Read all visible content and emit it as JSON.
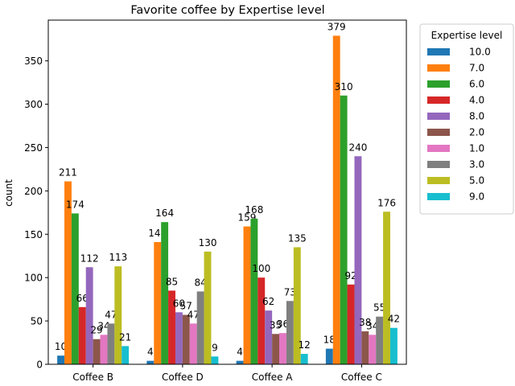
{
  "chart_data": {
    "type": "bar",
    "title": "Favorite coffee by Expertise level",
    "xlabel": "",
    "ylabel": "count",
    "ylim": [
      0,
      397
    ],
    "yticks": [
      0,
      50,
      100,
      150,
      200,
      250,
      300,
      350
    ],
    "grid": false,
    "legend": {
      "title": "Expertise level",
      "placement": "outside-right-top"
    },
    "categories": [
      "Coffee B",
      "Coffee D",
      "Coffee A",
      "Coffee C"
    ],
    "series": [
      {
        "name": "10.0",
        "color": "#1f77b4",
        "values": [
          10,
          4,
          4,
          18
        ]
      },
      {
        "name": "7.0",
        "color": "#ff7f0e",
        "values": [
          211,
          141,
          159,
          379
        ]
      },
      {
        "name": "6.0",
        "color": "#2ca02c",
        "values": [
          174,
          164,
          168,
          310
        ]
      },
      {
        "name": "4.0",
        "color": "#d62728",
        "values": [
          66,
          85,
          100,
          92
        ]
      },
      {
        "name": "8.0",
        "color": "#9467bd",
        "values": [
          112,
          60,
          62,
          240
        ]
      },
      {
        "name": "2.0",
        "color": "#8c564b",
        "values": [
          29,
          57,
          35,
          38
        ]
      },
      {
        "name": "1.0",
        "color": "#e377c2",
        "values": [
          34,
          47,
          36,
          34
        ]
      },
      {
        "name": "3.0",
        "color": "#7f7f7f",
        "values": [
          47,
          84,
          73,
          55
        ]
      },
      {
        "name": "5.0",
        "color": "#bcbd22",
        "values": [
          113,
          130,
          135,
          176
        ]
      },
      {
        "name": "9.0",
        "color": "#17becf",
        "values": [
          21,
          9,
          12,
          42
        ]
      }
    ]
  }
}
